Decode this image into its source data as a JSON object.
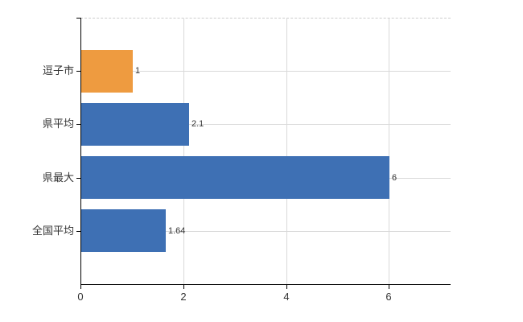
{
  "chart_data": {
    "type": "bar",
    "orientation": "horizontal",
    "title": "",
    "xlabel": "",
    "ylabel": "",
    "categories": [
      "逗子市",
      "県平均",
      "県最大",
      "全国平均"
    ],
    "values": [
      1,
      2.1,
      6,
      1.64
    ],
    "value_labels": [
      "1",
      "2.1",
      "6",
      "1.64"
    ],
    "series": [
      {
        "name": "value",
        "values": [
          1,
          2.1,
          6,
          1.64
        ],
        "fills": [
          "#EE9B40",
          "#3E70B4",
          "#3E70B4",
          "#3E70B4"
        ]
      }
    ],
    "xlim": [
      0,
      7.2
    ],
    "xticks": [
      0,
      2,
      4,
      6
    ],
    "xtick_labels": [
      "0",
      "2",
      "4",
      "6"
    ],
    "grid": "on",
    "grid_lines": "vertical at ticks, horizontal at category centers, dashed top border",
    "legend": "none",
    "colors": {
      "bar_highlight": "#EE9B40",
      "bar_default": "#3E70B4",
      "grid": "#D9D9D9",
      "top_border": "#CCCCCC",
      "axis": "#000000",
      "text": "#333333",
      "background": "#FFFFFF"
    }
  }
}
